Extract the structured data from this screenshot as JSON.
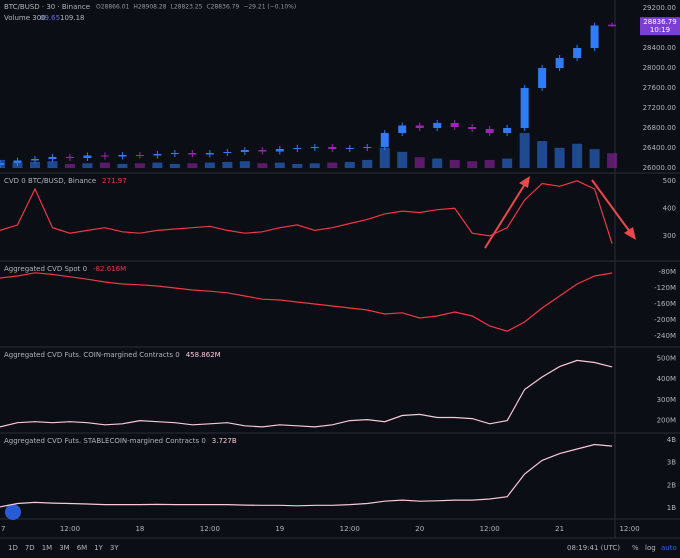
{
  "chart_data": [
    {
      "type": "candlestick",
      "title": "BTC/BUSD · 30 · Binance",
      "legend": [
        "O28866.01",
        "H28908.28",
        "L28823.25",
        "C28836.79",
        "−29.21 (−0.10%)"
      ],
      "volume_title": "Volume 300",
      "volume_legend": [
        "89.65",
        "109.18"
      ],
      "countdown": "10:19",
      "up_color": "#2f7cf6",
      "down_color": "#9c27b0",
      "x": [
        0,
        3,
        6,
        9,
        12,
        15,
        18,
        21,
        24,
        27,
        30,
        33,
        36,
        39,
        42,
        45,
        48,
        51,
        54,
        57,
        60,
        63,
        66,
        69,
        72,
        75,
        78,
        81,
        84,
        87,
        90,
        93,
        96,
        99,
        102,
        105
      ],
      "open": [
        26060,
        26100,
        26150,
        26180,
        26220,
        26200,
        26250,
        26230,
        26260,
        26250,
        26280,
        26300,
        26270,
        26300,
        26320,
        26360,
        26330,
        26380,
        26400,
        26420,
        26380,
        26400,
        26420,
        26700,
        26850,
        26800,
        26900,
        26820,
        26780,
        26700,
        26800,
        27600,
        28000,
        28200,
        28400,
        28866.01
      ],
      "high": [
        26160,
        26210,
        26240,
        26280,
        26280,
        26310,
        26310,
        26320,
        26320,
        26340,
        26360,
        26360,
        26360,
        26380,
        26420,
        26420,
        26440,
        26460,
        26480,
        26480,
        26460,
        26480,
        26760,
        26910,
        26910,
        26960,
        26960,
        26880,
        26840,
        26860,
        27660,
        28060,
        28260,
        28460,
        28910,
        28908.28
      ],
      "low": [
        26000,
        26040,
        26090,
        26120,
        26140,
        26140,
        26170,
        26170,
        26190,
        26190,
        26220,
        26210,
        26210,
        26240,
        26260,
        26270,
        26270,
        26320,
        26340,
        26320,
        26320,
        26340,
        26360,
        26640,
        26740,
        26740,
        26760,
        26720,
        26640,
        26640,
        26740,
        27540,
        27940,
        28140,
        28340,
        28823.25
      ],
      "close": [
        26100,
        26150,
        26180,
        26220,
        26200,
        26250,
        26230,
        26260,
        26250,
        26280,
        26300,
        26270,
        26300,
        26320,
        26360,
        26330,
        26380,
        26400,
        26420,
        26380,
        26400,
        26420,
        26700,
        26850,
        26800,
        26900,
        26820,
        26780,
        26700,
        26800,
        27600,
        28000,
        28200,
        28400,
        28850,
        28836.79
      ],
      "volume": [
        60,
        40,
        45,
        50,
        30,
        35,
        40,
        30,
        35,
        40,
        30,
        35,
        40,
        45,
        50,
        35,
        40,
        30,
        35,
        40,
        45,
        60,
        150,
        120,
        80,
        70,
        60,
        50,
        60,
        70,
        260,
        200,
        150,
        180,
        140,
        110
      ],
      "ylim": [
        26000,
        29200
      ],
      "yticks": [
        {
          "value": 26000,
          "label": "26000.00"
        },
        {
          "value": 26400,
          "label": "26400.00"
        },
        {
          "value": 26800,
          "label": "26800.00"
        },
        {
          "value": 27200,
          "label": "27200.00"
        },
        {
          "value": 27600,
          "label": "27600.00"
        },
        {
          "value": 28000,
          "label": "28000.00"
        },
        {
          "value": 28400,
          "label": "28400.00"
        },
        {
          "value": 28800,
          "label": "28800.00"
        },
        {
          "value": 29200,
          "label": "29200.00"
        }
      ]
    },
    {
      "type": "line",
      "title": "CVD 0 BTC/BUSD, Binance",
      "legend_value": "271.97",
      "color": "#f23645",
      "x": [
        0,
        3,
        6,
        9,
        12,
        15,
        18,
        21,
        24,
        27,
        30,
        33,
        36,
        39,
        42,
        45,
        48,
        51,
        54,
        57,
        60,
        63,
        66,
        69,
        72,
        75,
        78,
        81,
        84,
        87,
        90,
        93,
        96,
        99,
        102,
        105
      ],
      "values": [
        320,
        340,
        470,
        330,
        310,
        320,
        330,
        315,
        310,
        320,
        325,
        330,
        335,
        320,
        310,
        315,
        330,
        340,
        320,
        330,
        345,
        360,
        380,
        390,
        385,
        395,
        400,
        310,
        300,
        330,
        430,
        490,
        480,
        500,
        470,
        271.97
      ],
      "ylim": [
        220,
        510
      ],
      "yticks": [
        300,
        400,
        500
      ]
    },
    {
      "type": "line",
      "title": "Aggregated CVD Spot 0",
      "legend_value": "-82.616M",
      "color": "#f23645",
      "x": [
        0,
        3,
        6,
        9,
        12,
        15,
        18,
        21,
        24,
        27,
        30,
        33,
        36,
        39,
        42,
        45,
        48,
        51,
        54,
        57,
        60,
        63,
        66,
        69,
        72,
        75,
        78,
        81,
        84,
        87,
        90,
        93,
        96,
        99,
        102,
        105
      ],
      "values": [
        -95,
        -90,
        -82,
        -86,
        -92,
        -98,
        -105,
        -110,
        -112,
        -115,
        -120,
        -125,
        -128,
        -132,
        -140,
        -148,
        -150,
        -155,
        -160,
        -165,
        -170,
        -175,
        -185,
        -182,
        -195,
        -190,
        -180,
        -190,
        -215,
        -228,
        -205,
        -170,
        -140,
        -110,
        -90,
        -82.616
      ],
      "ylim": [
        -260,
        -60
      ],
      "yticks": [
        {
          "value": -80,
          "label": "-80M"
        },
        {
          "value": -120,
          "label": "-120M"
        },
        {
          "value": -160,
          "label": "-160M"
        },
        {
          "value": -200,
          "label": "-200M"
        },
        {
          "value": -240,
          "label": "-240M"
        }
      ]
    },
    {
      "type": "line",
      "title": "Aggregated CVD Futs. COIN-margined Contracts 0",
      "legend_value": "458.862M",
      "color": "#f8c8d8",
      "x": [
        0,
        3,
        6,
        9,
        12,
        15,
        18,
        21,
        24,
        27,
        30,
        33,
        36,
        39,
        42,
        45,
        48,
        51,
        54,
        57,
        60,
        63,
        66,
        69,
        72,
        75,
        78,
        81,
        84,
        87,
        90,
        93,
        96,
        99,
        102,
        105
      ],
      "values": [
        170,
        190,
        195,
        190,
        195,
        190,
        180,
        185,
        200,
        195,
        190,
        180,
        185,
        190,
        175,
        170,
        180,
        175,
        170,
        180,
        200,
        205,
        195,
        225,
        230,
        215,
        215,
        210,
        185,
        200,
        350,
        410,
        460,
        490,
        480,
        458.862
      ],
      "ylim": [
        155,
        540
      ],
      "yticks": [
        {
          "value": 200,
          "label": "200M"
        },
        {
          "value": 300,
          "label": "300M"
        },
        {
          "value": 400,
          "label": "400M"
        },
        {
          "value": 500,
          "label": "500M"
        }
      ]
    },
    {
      "type": "line",
      "title": "Aggregated CVD Futs. STABLECOIN-margined Contracts 0",
      "legend_value": "3.727B",
      "color": "#f8c8d8",
      "x": [
        0,
        3,
        6,
        9,
        12,
        15,
        18,
        21,
        24,
        27,
        30,
        33,
        36,
        39,
        42,
        45,
        48,
        51,
        54,
        57,
        60,
        63,
        66,
        69,
        72,
        75,
        78,
        81,
        84,
        87,
        90,
        93,
        96,
        99,
        102,
        105
      ],
      "values": [
        1.05,
        1.2,
        1.25,
        1.22,
        1.2,
        1.18,
        1.15,
        1.15,
        1.15,
        1.16,
        1.15,
        1.15,
        1.15,
        1.15,
        1.13,
        1.12,
        1.12,
        1.1,
        1.12,
        1.12,
        1.15,
        1.2,
        1.3,
        1.35,
        1.3,
        1.32,
        1.35,
        1.35,
        1.4,
        1.5,
        2.5,
        3.1,
        3.4,
        3.6,
        3.8,
        3.727
      ],
      "ylim": [
        0.65,
        4.13
      ],
      "yticks": [
        {
          "value": 1,
          "label": "1B"
        },
        {
          "value": 2,
          "label": "2B"
        },
        {
          "value": 3,
          "label": "3B"
        },
        {
          "value": 4,
          "label": "4B"
        }
      ]
    }
  ],
  "x_axis": {
    "xlim": [
      0,
      105.5
    ],
    "xticks": [
      {
        "value": 0,
        "label": "7"
      },
      {
        "value": 12,
        "label": "12:00"
      },
      {
        "value": 24,
        "label": "18"
      },
      {
        "value": 36,
        "label": "12:00"
      },
      {
        "value": 48,
        "label": "19"
      },
      {
        "value": 60,
        "label": "12:00"
      },
      {
        "value": 72,
        "label": "20"
      },
      {
        "value": 84,
        "label": "12:00"
      },
      {
        "value": 96,
        "label": "21"
      },
      {
        "value": 108,
        "label": "12:00"
      }
    ]
  },
  "toolbar": {
    "ranges": [
      "1D",
      "7D",
      "1M",
      "3M",
      "6M",
      "1Y",
      "3Y"
    ],
    "clock": "08:19:41 (UTC)",
    "percent": "%",
    "log": "log",
    "auto": "auto"
  }
}
